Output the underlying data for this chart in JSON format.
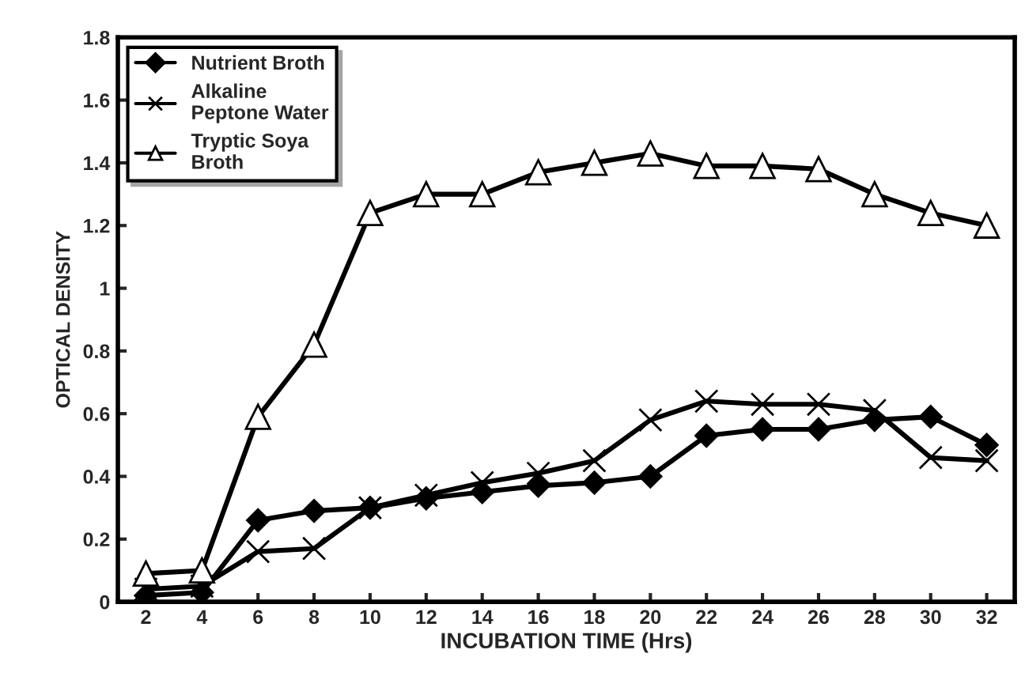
{
  "chart_data": {
    "type": "line",
    "xlabel": "INCUBATION TIME (Hrs)",
    "ylabel": "OPTICAL DENSITY",
    "categories": [
      "2",
      "4",
      "6",
      "8",
      "10",
      "12",
      "14",
      "16",
      "18",
      "20",
      "22",
      "24",
      "26",
      "28",
      "30",
      "32"
    ],
    "series": [
      {
        "name": "Nutrient Broth",
        "color": "#000000",
        "marker": "diamond",
        "values": [
          0.02,
          0.03,
          0.26,
          0.29,
          0.3,
          0.33,
          0.35,
          0.37,
          0.38,
          0.4,
          0.53,
          0.55,
          0.55,
          0.58,
          0.59,
          0.5
        ]
      },
      {
        "name": "Alkaline Peptone Water",
        "color": "#000000",
        "marker": "cross",
        "values": [
          0.04,
          0.05,
          0.16,
          0.17,
          0.3,
          0.34,
          0.38,
          0.41,
          0.45,
          0.58,
          0.64,
          0.63,
          0.63,
          0.61,
          0.46,
          0.45
        ]
      },
      {
        "name": "Tryptic Soya Broth",
        "color": "#000000",
        "marker": "triangle",
        "values": [
          0.09,
          0.1,
          0.59,
          0.82,
          1.24,
          1.3,
          1.3,
          1.37,
          1.4,
          1.43,
          1.39,
          1.39,
          1.38,
          1.3,
          1.24,
          1.2
        ]
      }
    ],
    "ylim": [
      0,
      1.8
    ],
    "yticks": [
      0,
      0.2,
      0.4,
      0.6,
      0.8,
      1,
      1.2,
      1.4,
      1.6,
      1.8
    ],
    "grid": false,
    "legend": "top left",
    "line_style": "solid"
  }
}
